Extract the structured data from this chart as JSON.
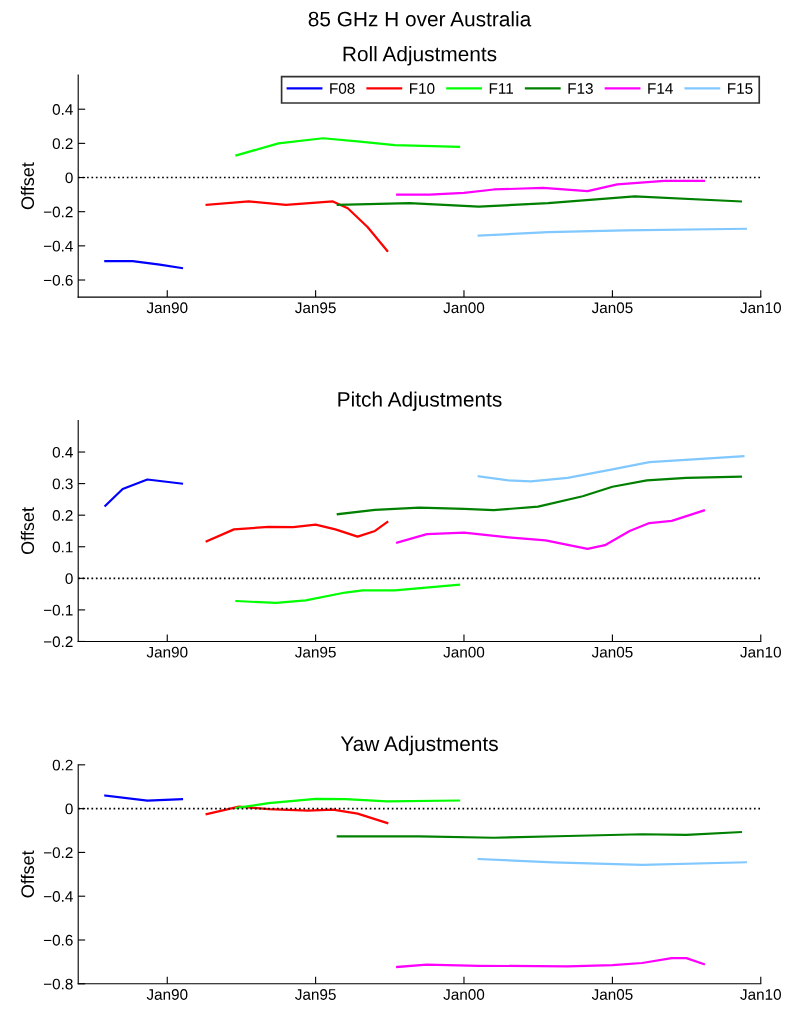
{
  "chart_data": [
    {
      "type": "line",
      "title": "85 GHz H over Australia",
      "subtitle": "Roll Adjustments",
      "ylabel": "Offset",
      "xlim": [
        "1987-01",
        "2010-01"
      ],
      "ylim": [
        -0.7,
        0.6
      ],
      "xticks": [
        {
          "value": "1990-01",
          "label": "Jan90"
        },
        {
          "value": "1995-01",
          "label": "Jan95"
        },
        {
          "value": "2000-01",
          "label": "Jan00"
        },
        {
          "value": "2005-01",
          "label": "Jan05"
        },
        {
          "value": "2010-01",
          "label": "Jan10"
        }
      ],
      "yticks": [
        {
          "value": -0.6,
          "label": "−0.6"
        },
        {
          "value": -0.4,
          "label": "−0.4"
        },
        {
          "value": -0.2,
          "label": "−0.2"
        },
        0,
        0.2,
        0.4
      ],
      "legend": "top right",
      "grid": false,
      "line_style": "solid",
      "marker": "none",
      "ref_lines": [
        {
          "axis": "y",
          "value": 0,
          "color": "#000000",
          "line_style": "dotted"
        }
      ],
      "series": [
        {
          "name": "F08",
          "color": "#0000ff",
          "x": [
            "1987-12",
            "1988-11",
            "1989-10",
            "1990-07"
          ],
          "values": [
            -0.49,
            -0.49,
            -0.51,
            -0.53
          ]
        },
        {
          "name": "F10",
          "color": "#ff0000",
          "x": [
            "1991-05",
            "1992-10",
            "1994-01",
            "1995-08",
            "1996-02",
            "1996-10",
            "1997-06"
          ],
          "values": [
            -0.16,
            -0.14,
            -0.16,
            -0.14,
            -0.18,
            -0.29,
            -0.43
          ]
        },
        {
          "name": "F11",
          "color": "#00ff00",
          "x": [
            "1992-05",
            "1993-10",
            "1995-04",
            "1996-07",
            "1997-09",
            "1999-11"
          ],
          "values": [
            0.13,
            0.2,
            0.23,
            0.21,
            0.19,
            0.18
          ]
        },
        {
          "name": "F13",
          "color": "#008000",
          "x": [
            "1995-10",
            "1998-03",
            "2000-07",
            "2002-11",
            "2005-10",
            "2009-05"
          ],
          "values": [
            -0.16,
            -0.15,
            -0.17,
            -0.15,
            -0.11,
            -0.14
          ]
        },
        {
          "name": "F14",
          "color": "#ff00ff",
          "x": [
            "1997-10",
            "1998-11",
            "2000-01",
            "2001-01",
            "2002-09",
            "2004-03",
            "2005-03",
            "2006-10",
            "2008-02"
          ],
          "values": [
            -0.1,
            -0.1,
            -0.09,
            -0.07,
            -0.06,
            -0.08,
            -0.04,
            -0.02,
            -0.02
          ]
        },
        {
          "name": "F15",
          "color": "#80c8ff",
          "x": [
            "2000-07",
            "2002-11",
            "2005-06",
            "2009-07"
          ],
          "values": [
            -0.34,
            -0.32,
            -0.31,
            -0.3
          ]
        }
      ]
    },
    {
      "type": "line",
      "subtitle": "Pitch Adjustments",
      "ylabel": "Offset",
      "xlim": [
        "1987-01",
        "2010-01"
      ],
      "ylim": [
        -0.2,
        0.5
      ],
      "xticks": [
        {
          "value": "1990-01",
          "label": "Jan90"
        },
        {
          "value": "1995-01",
          "label": "Jan95"
        },
        {
          "value": "2000-01",
          "label": "Jan00"
        },
        {
          "value": "2005-01",
          "label": "Jan05"
        },
        {
          "value": "2010-01",
          "label": "Jan10"
        }
      ],
      "yticks": [
        {
          "value": -0.2,
          "label": "−0.2"
        },
        {
          "value": -0.1,
          "label": "−0.1"
        },
        0,
        0.1,
        0.2,
        0.3,
        0.4
      ],
      "grid": false,
      "line_style": "solid",
      "marker": "none",
      "ref_lines": [
        {
          "axis": "y",
          "value": 0,
          "color": "#000000",
          "line_style": "dotted"
        }
      ],
      "series": [
        {
          "color": "#0000ff",
          "x": [
            "1987-12",
            "1988-07",
            "1989-05",
            "1990-07"
          ],
          "values": [
            0.23,
            0.283,
            0.313,
            0.3
          ]
        },
        {
          "color": "#ff0000",
          "x": [
            "1991-05",
            "1992-04",
            "1993-06",
            "1994-04",
            "1995-01",
            "1995-09",
            "1996-06",
            "1997-01",
            "1997-06"
          ],
          "values": [
            0.117,
            0.155,
            0.163,
            0.162,
            0.17,
            0.155,
            0.132,
            0.15,
            0.178
          ]
        },
        {
          "color": "#00ff00",
          "x": [
            "1992-05",
            "1993-09",
            "1994-09",
            "1996-01",
            "1996-08",
            "1997-09",
            "1999-11"
          ],
          "values": [
            -0.072,
            -0.078,
            -0.07,
            -0.045,
            -0.038,
            -0.038,
            -0.02
          ]
        },
        {
          "color": "#008000",
          "x": [
            "1995-10",
            "1997-01",
            "1998-07",
            "2000-01",
            "2001-01",
            "2002-07",
            "2004-01",
            "2005-01",
            "2006-03",
            "2007-07",
            "2009-05"
          ],
          "values": [
            0.203,
            0.217,
            0.224,
            0.22,
            0.216,
            0.227,
            0.26,
            0.29,
            0.31,
            0.318,
            0.322
          ]
        },
        {
          "color": "#ff00ff",
          "x": [
            "1997-10",
            "1998-10",
            "2000-01",
            "2001-07",
            "2002-10",
            "2004-03",
            "2004-10",
            "2005-08",
            "2006-04",
            "2007-01",
            "2008-02"
          ],
          "values": [
            0.113,
            0.14,
            0.145,
            0.13,
            0.12,
            0.093,
            0.105,
            0.15,
            0.175,
            0.182,
            0.215
          ]
        },
        {
          "color": "#80c8ff",
          "x": [
            "2000-07",
            "2001-07",
            "2002-04",
            "2003-07",
            "2005-01",
            "2006-04",
            "2008-01",
            "2009-06"
          ],
          "values": [
            0.323,
            0.31,
            0.307,
            0.318,
            0.345,
            0.368,
            0.378,
            0.387
          ]
        }
      ]
    },
    {
      "type": "line",
      "subtitle": "Yaw Adjustments",
      "ylabel": "Offset",
      "xlim": [
        "1987-01",
        "2010-01"
      ],
      "ylim": [
        -0.8,
        0.2
      ],
      "xticks": [
        {
          "value": "1990-01",
          "label": "Jan90"
        },
        {
          "value": "1995-01",
          "label": "Jan95"
        },
        {
          "value": "2000-01",
          "label": "Jan00"
        },
        {
          "value": "2005-01",
          "label": "Jan05"
        },
        {
          "value": "2010-01",
          "label": "Jan10"
        }
      ],
      "yticks": [
        {
          "value": -0.8,
          "label": "−0.8"
        },
        {
          "value": -0.6,
          "label": "−0.6"
        },
        {
          "value": -0.4,
          "label": "−0.4"
        },
        {
          "value": -0.2,
          "label": "−0.2"
        },
        0,
        0.2
      ],
      "grid": false,
      "line_style": "solid",
      "marker": "none",
      "ref_lines": [
        {
          "axis": "y",
          "value": 0,
          "color": "#000000",
          "line_style": "dotted"
        }
      ],
      "series": [
        {
          "color": "#0000ff",
          "x": [
            "1987-12",
            "1989-05",
            "1990-07"
          ],
          "values": [
            0.06,
            0.037,
            0.043
          ]
        },
        {
          "color": "#ff0000",
          "x": [
            "1991-05",
            "1992-06",
            "1993-06",
            "1994-10",
            "1995-08",
            "1996-06",
            "1997-06"
          ],
          "values": [
            -0.025,
            0.009,
            -0.002,
            -0.009,
            -0.005,
            -0.023,
            -0.066
          ]
        },
        {
          "color": "#00ff00",
          "x": [
            "1992-05",
            "1993-06",
            "1995-01",
            "1996-01",
            "1997-06",
            "1999-11"
          ],
          "values": [
            0.003,
            0.025,
            0.045,
            0.043,
            0.033,
            0.037
          ]
        },
        {
          "color": "#008000",
          "x": [
            "1995-10",
            "1998-07",
            "2001-01",
            "2003-07",
            "2006-01",
            "2007-07",
            "2009-05"
          ],
          "values": [
            -0.127,
            -0.127,
            -0.133,
            -0.125,
            -0.117,
            -0.12,
            -0.107
          ]
        },
        {
          "color": "#ff00ff",
          "x": [
            "1997-10",
            "1998-10",
            "2000-07",
            "2003-07",
            "2005-01",
            "2006-01",
            "2007-01",
            "2007-07",
            "2008-02"
          ],
          "values": [
            -0.723,
            -0.712,
            -0.718,
            -0.72,
            -0.715,
            -0.705,
            -0.683,
            -0.683,
            -0.71
          ]
        },
        {
          "color": "#80c8ff",
          "x": [
            "2000-07",
            "2003-01",
            "2006-01",
            "2009-07"
          ],
          "values": [
            -0.23,
            -0.245,
            -0.257,
            -0.245
          ]
        }
      ]
    }
  ]
}
